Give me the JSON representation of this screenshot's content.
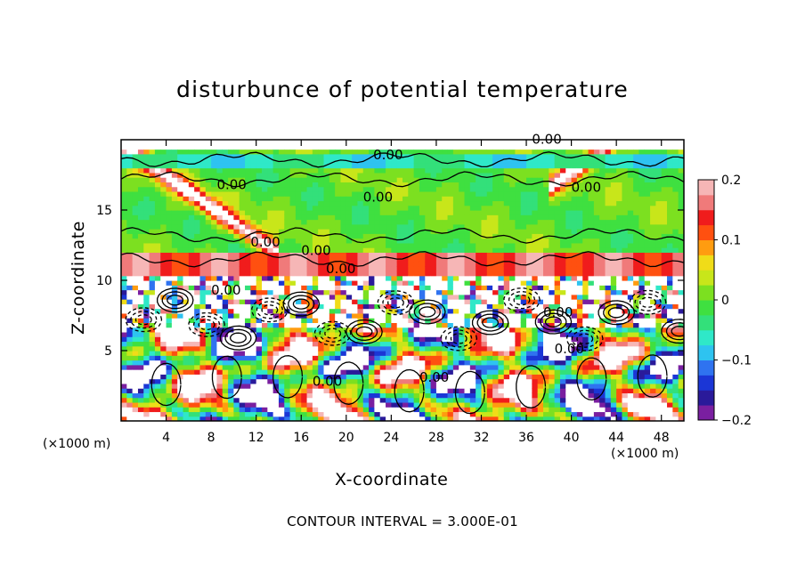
{
  "chart_data": {
    "type": "heatmap",
    "title": "disturbunce of potential temperature",
    "xlabel": "X-coordinate",
    "ylabel": "Z-coordinate",
    "x_unit_left": "(×1000 m)",
    "x_unit_right": "(×1000 m)",
    "x_ticks": [
      4,
      8,
      12,
      16,
      20,
      24,
      28,
      32,
      36,
      40,
      44,
      48
    ],
    "y_ticks": [
      5,
      10,
      15
    ],
    "xlim": [
      0,
      50
    ],
    "ylim": [
      0,
      20
    ],
    "colorbar": {
      "ticks": [
        "0.2",
        "0.1",
        "0",
        "−0.1",
        "−0.2"
      ],
      "tick_values": [
        0.2,
        0.1,
        0,
        -0.1,
        -0.2
      ],
      "range": [
        -0.2,
        0.2
      ],
      "colors": [
        "#7a1fa0",
        "#2a1a9a",
        "#1b36d6",
        "#2f73f0",
        "#2ec3f0",
        "#2fe8c8",
        "#33e07a",
        "#3fe040",
        "#7ce020",
        "#c8e61a",
        "#f0dc18",
        "#ff9c10",
        "#ff5010",
        "#f01c1c",
        "#f07a7a",
        "#f6b6b6"
      ]
    },
    "contour_interval": "CONTOUR INTERVAL = 3.000E-01",
    "contour_labels": [
      "0.00",
      "0.00",
      "0.00",
      "0.00",
      "0.00",
      "0.00",
      "0.00",
      "0.00",
      "0.00",
      "0.00",
      "0.00",
      "0.00",
      "0.00"
    ],
    "grid": false
  }
}
